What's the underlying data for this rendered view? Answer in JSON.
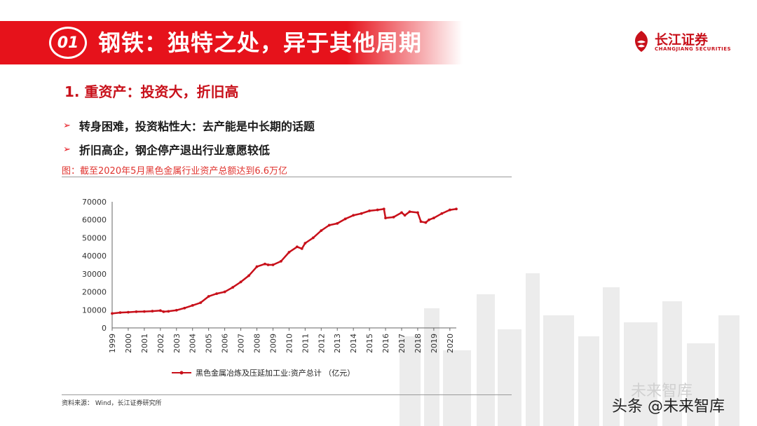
{
  "header": {
    "badge": "01",
    "title": "钢铁：独特之处，异于其他周期"
  },
  "logo": {
    "name_cn": "长江证券",
    "name_en": "CHANGJIANG SECURITIES"
  },
  "section": {
    "title": "1. 重资产：投资大，折旧高"
  },
  "bullets": [
    {
      "arrow": "➢",
      "text": "转身困难，投资粘性大：去产能是中长期的话题"
    },
    {
      "arrow": "➢",
      "text": "折旧高企，钢企停产退出行业意愿较低"
    }
  ],
  "figure": {
    "caption": "图：截至2020年5月黑色金属行业资产总额达到6.6万亿"
  },
  "footer": {
    "source": "资料来源：  Wind，长江证券研究所"
  },
  "watermark": {
    "line1": "未来智库",
    "line2": "头条 @未来智库"
  },
  "colors": {
    "accent": "#e6121b",
    "series": "#c8101a"
  },
  "chart_data": {
    "type": "line",
    "title": "",
    "xlabel": "",
    "ylabel": "",
    "ylim": [
      0,
      70000
    ],
    "yticks": [
      "0",
      "10000",
      "20000",
      "30000",
      "40000",
      "50000",
      "60000",
      "70000"
    ],
    "xticks": [
      "1999",
      "2000",
      "2001",
      "2002",
      "2003",
      "2004",
      "2005",
      "2006",
      "2007",
      "2008",
      "2009",
      "2010",
      "2011",
      "2012",
      "2013",
      "2014",
      "2015",
      "2016",
      "2017",
      "2018",
      "2019",
      "2020"
    ],
    "grid": false,
    "legend_position": "bottom",
    "series": [
      {
        "name": "黑色金属冶炼及压延加工业:资产总计 （亿元）",
        "x": [
          1999.0,
          1999.5,
          2000.0,
          2000.5,
          2001.0,
          2001.5,
          2002.0,
          2002.2,
          2002.5,
          2003.0,
          2003.5,
          2004.0,
          2004.5,
          2005.0,
          2005.5,
          2006.0,
          2006.5,
          2007.0,
          2007.5,
          2008.0,
          2008.5,
          2008.7,
          2009.0,
          2009.5,
          2010.0,
          2010.5,
          2010.8,
          2011.0,
          2011.5,
          2012.0,
          2012.5,
          2013.0,
          2013.5,
          2014.0,
          2014.5,
          2015.0,
          2015.5,
          2015.9,
          2016.0,
          2016.5,
          2017.0,
          2017.2,
          2017.5,
          2018.0,
          2018.2,
          2018.5,
          2018.7,
          2019.0,
          2019.5,
          2020.0,
          2020.4
        ],
        "values": [
          8000,
          8500,
          8700,
          9000,
          9100,
          9300,
          9600,
          9000,
          9200,
          9800,
          11000,
          12500,
          14000,
          17500,
          19000,
          20000,
          22500,
          25500,
          29000,
          34000,
          35500,
          35000,
          35000,
          37000,
          42000,
          45000,
          44000,
          47000,
          50000,
          54000,
          57000,
          58000,
          60500,
          62500,
          63500,
          65000,
          65500,
          66000,
          61000,
          61500,
          64000,
          62500,
          64500,
          64000,
          59000,
          58500,
          60000,
          61000,
          63500,
          65500,
          66000
        ]
      }
    ]
  }
}
